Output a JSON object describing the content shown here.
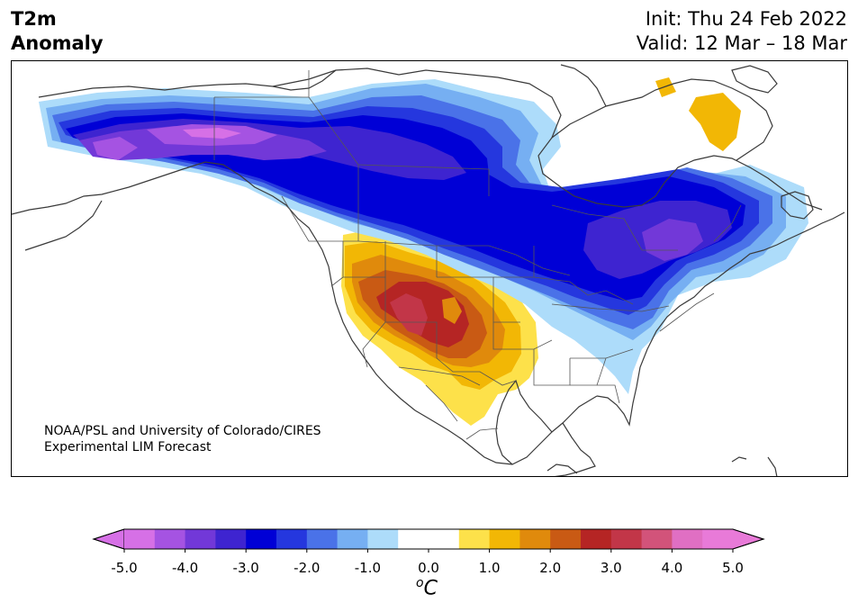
{
  "header": {
    "title_line1": "T2m",
    "title_line2": "Anomaly",
    "init": "Init: Thu 24 Feb 2022",
    "valid": "Valid: 12 Mar – 18 Mar"
  },
  "credit": {
    "line1": "NOAA/PSL and University of Colorado/CIRES",
    "line2": "Experimental LIM Forecast"
  },
  "colorbar": {
    "tick_labels": [
      "-5.0",
      "-4.0",
      "-3.0",
      "-2.0",
      "-1.0",
      "0.0",
      "1.0",
      "2.0",
      "3.0",
      "4.0",
      "5.0"
    ],
    "units_base": "C",
    "units_sup": "o",
    "colors": [
      "#d670e6",
      "#a553e2",
      "#7238d8",
      "#3e24d0",
      "#0000d6",
      "#2537de",
      "#4a72e8",
      "#76aff2",
      "#addcfa",
      "#ffffff",
      "#ffffff",
      "#fde14a",
      "#f2b705",
      "#e08a0c",
      "#c95a14",
      "#b52524",
      "#c23648",
      "#d2537a",
      "#e06fc3",
      "#e87ad8"
    ],
    "extend_low_color": "#d670e6",
    "extend_high_color": "#e87ad8"
  },
  "map": {
    "background": "#ffffff",
    "coastline_color": "#3a3a3a",
    "border_color": "#555555"
  }
}
